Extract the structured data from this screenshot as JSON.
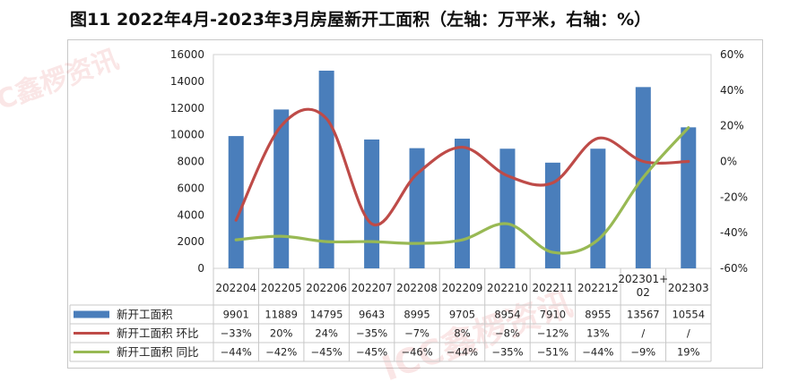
{
  "title": "图11  2022年4月-2023年3月房屋新开工面积（左轴：万平米，右轴：%）",
  "watermark": "ICC鑫椤资讯",
  "chart_data": {
    "type": "bar+line",
    "categories": [
      "202204",
      "202205",
      "202206",
      "202207",
      "202208",
      "202209",
      "202210",
      "202211",
      "202212",
      "202301+02",
      "202303"
    ],
    "category_lines": [
      [
        "202204"
      ],
      [
        "202205"
      ],
      [
        "202206"
      ],
      [
        "202207"
      ],
      [
        "202208"
      ],
      [
        "202209"
      ],
      [
        "202210"
      ],
      [
        "202211"
      ],
      [
        "202212"
      ],
      [
        "202301+",
        "02"
      ],
      [
        "202303"
      ]
    ],
    "left_axis": {
      "min": 0,
      "max": 16000,
      "ticks": [
        "0",
        "2000",
        "4000",
        "6000",
        "8000",
        "10000",
        "12000",
        "14000",
        "16000"
      ]
    },
    "right_axis": {
      "min": -60,
      "max": 60,
      "ticks": [
        "-60%",
        "-40%",
        "-20%",
        "0%",
        "20%",
        "40%",
        "60%"
      ]
    },
    "series": [
      {
        "name": "新开工面积",
        "type": "bar",
        "axis": "left",
        "color": "#4a7ebb",
        "values": [
          9901,
          11889,
          14795,
          9643,
          8995,
          9705,
          8954,
          7910,
          8955,
          13567,
          10554
        ],
        "labels": [
          "9901",
          "11889",
          "14795",
          "9643",
          "8995",
          "9705",
          "8954",
          "7910",
          "8955",
          "13567",
          "10554"
        ]
      },
      {
        "name": "新开工面积  环比",
        "type": "line",
        "axis": "right",
        "color": "#be4b48",
        "values": [
          -33,
          20,
          24,
          -35,
          -7,
          8,
          -8,
          -12,
          13,
          null,
          null
        ],
        "labels": [
          "−33%",
          "20%",
          "24%",
          "−35%",
          "−7%",
          "8%",
          "−8%",
          "−12%",
          "13%",
          "/",
          "/"
        ],
        "curve_points": [
          -33,
          20,
          24,
          -35,
          -7,
          8,
          -8,
          -12,
          13,
          0,
          0
        ]
      },
      {
        "name": "新开工面积  同比",
        "type": "line",
        "axis": "right",
        "color": "#98b954",
        "values": [
          -44,
          -42,
          -45,
          -45,
          -46,
          -44,
          -35,
          -51,
          -44,
          -9,
          19
        ],
        "labels": [
          "−44%",
          "−42%",
          "−45%",
          "−45%",
          "−46%",
          "−44%",
          "−35%",
          "−51%",
          "−44%",
          "−9%",
          "19%"
        ]
      }
    ]
  }
}
